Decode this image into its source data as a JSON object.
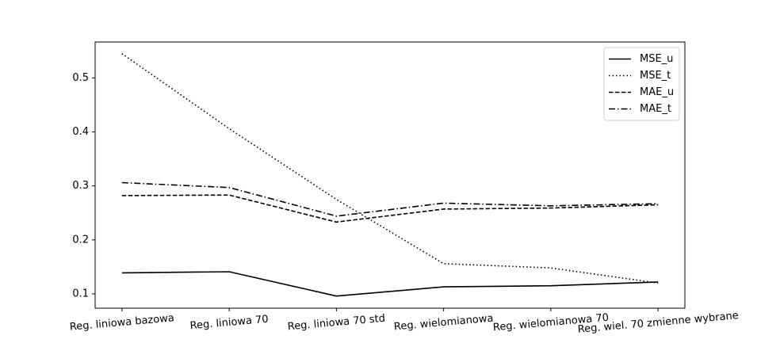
{
  "chart_data": {
    "type": "line",
    "categories": [
      "Reg. liniowa bazowa",
      "Reg. liniowa 70",
      "Reg. liniowa 70 std",
      "Reg. wielomianowa",
      "Reg. wielomianowa 70",
      "Reg. wiel. 70 zmienne wybrane"
    ],
    "series": [
      {
        "name": "MSE_u",
        "style": "solid",
        "values": [
          0.139,
          0.141,
          0.096,
          0.113,
          0.115,
          0.122
        ]
      },
      {
        "name": "MSE_t",
        "style": "dotted",
        "values": [
          0.545,
          0.406,
          0.275,
          0.156,
          0.148,
          0.12
        ]
      },
      {
        "name": "MAE_u",
        "style": "dashed",
        "values": [
          0.282,
          0.283,
          0.233,
          0.257,
          0.259,
          0.265
        ]
      },
      {
        "name": "MAE_t",
        "style": "dashdot",
        "values": [
          0.306,
          0.297,
          0.244,
          0.268,
          0.263,
          0.267
        ]
      }
    ],
    "yticks": [
      0.1,
      0.2,
      0.3,
      0.4,
      0.5
    ],
    "ytick_labels": [
      "0.1",
      "0.2",
      "0.3",
      "0.4",
      "0.5"
    ],
    "ylim": [
      0.0735,
      0.5665
    ],
    "xlim": [
      -0.25,
      5.25
    ],
    "title": "",
    "xlabel": "",
    "ylabel": "",
    "grid": false,
    "legend_position": "top-right",
    "x_tick_rotation_deg": -5,
    "line_color": "#000000"
  }
}
